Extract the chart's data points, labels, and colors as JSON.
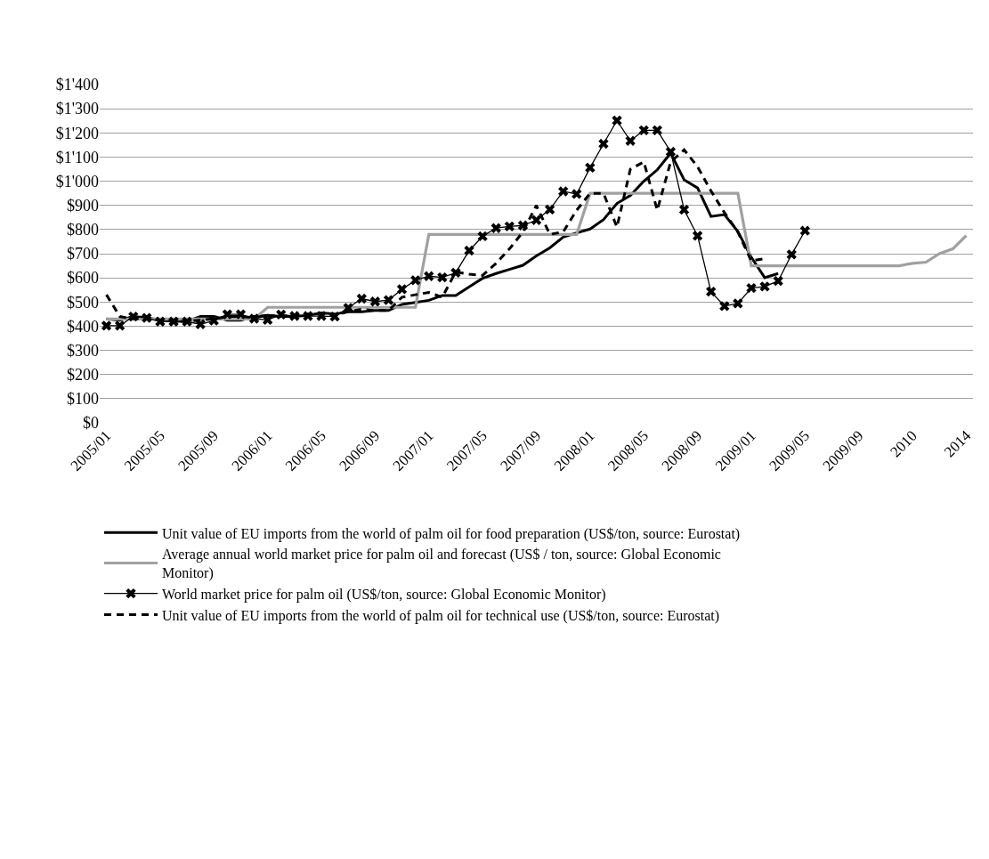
{
  "chart_data": {
    "type": "line",
    "categories": [
      "2005/01",
      null,
      null,
      null,
      "2005/05",
      null,
      null,
      null,
      "2005/09",
      null,
      null,
      null,
      "2006/01",
      null,
      null,
      null,
      "2006/05",
      null,
      null,
      null,
      "2006/09",
      null,
      null,
      null,
      "2007/01",
      null,
      null,
      null,
      "2007/05",
      null,
      null,
      null,
      "2007/09",
      null,
      null,
      null,
      "2008/01",
      null,
      null,
      null,
      "2008/05",
      null,
      null,
      null,
      "2008/09",
      null,
      null,
      null,
      "2009/01",
      null,
      null,
      null,
      "2009/05",
      null,
      null,
      null,
      "2009/09",
      null,
      null,
      null,
      "2010",
      null,
      null,
      null,
      "2014"
    ],
    "series": [
      {
        "name": "Unit value of EU imports from the world of palm oil for food preparation (US$/ton, source: Eurostat)",
        "color": "#000000",
        "line_style": "solid",
        "values": [
          430,
          425,
          440,
          435,
          425,
          420,
          420,
          440,
          440,
          425,
          425,
          440,
          445,
          440,
          440,
          445,
          455,
          450,
          460,
          460,
          465,
          465,
          490,
          498,
          507,
          527,
          527,
          563,
          598,
          618,
          635,
          652,
          691,
          724,
          769,
          786,
          802,
          841,
          908,
          941,
          1000,
          1047,
          1116,
          1006,
          972,
          854,
          862,
          792,
          685,
          601,
          618,
          null,
          null,
          null,
          null,
          null,
          null,
          null,
          null,
          null,
          null,
          null,
          null,
          null,
          null
        ]
      },
      {
        "name": "Average annual world market price for palm oil and forecast (US$ / ton, source: Global Economic Monitor)",
        "color": "#a0a0a0",
        "line_style": "solid",
        "values": [
          430,
          430,
          430,
          430,
          430,
          430,
          430,
          430,
          430,
          430,
          430,
          430,
          478,
          478,
          478,
          478,
          478,
          478,
          478,
          478,
          478,
          478,
          478,
          478,
          780,
          780,
          780,
          780,
          780,
          780,
          780,
          780,
          780,
          780,
          780,
          780,
          950,
          950,
          950,
          950,
          950,
          950,
          950,
          950,
          950,
          950,
          950,
          950,
          650,
          650,
          650,
          650,
          650,
          650,
          650,
          650,
          650,
          650,
          650,
          650,
          660,
          665,
          700,
          720,
          775
        ]
      },
      {
        "name": "World market price for palm oil (US$/ton, source: Global Economic Monitor)",
        "color": "#000000",
        "line_style": "solid",
        "marker": "cross",
        "values": [
          402,
          402,
          440,
          434,
          419,
          419,
          419,
          408,
          423,
          449,
          449,
          431,
          426,
          448,
          442,
          442,
          442,
          440,
          476,
          514,
          502,
          508,
          553,
          590,
          607,
          602,
          621,
          713,
          772,
          806,
          813,
          817,
          839,
          883,
          958,
          947,
          1056,
          1155,
          1251,
          1167,
          1211,
          1211,
          1122,
          882,
          774,
          543,
          483,
          494,
          558,
          564,
          587,
          697,
          795,
          null,
          null,
          null,
          null,
          null,
          null,
          null,
          null,
          null,
          null,
          null,
          null
        ]
      },
      {
        "name": "Unit value of EU imports from the world of palm oil for technical use (US$/ton, source: Eurostat)",
        "color": "#000000",
        "line_style": "dashed",
        "values": [
          530,
          440,
          430,
          435,
          425,
          420,
          420,
          425,
          430,
          440,
          440,
          435,
          445,
          440,
          445,
          450,
          450,
          445,
          460,
          470,
          465,
          465,
          520,
          530,
          540,
          520,
          625,
          615,
          610,
          660,
          720,
          790,
          900,
          780,
          790,
          880,
          950,
          950,
          810,
          1050,
          1080,
          880,
          1080,
          1130,
          1060,
          960,
          870,
          790,
          670,
          680,
          null,
          null,
          null,
          null,
          null,
          null,
          null,
          null,
          null,
          null,
          null,
          null,
          null,
          null,
          null
        ]
      }
    ],
    "ylim": [
      0,
      1400
    ],
    "yticks": [
      {
        "value": 0,
        "label": "$0"
      },
      {
        "value": 100,
        "label": "$100"
      },
      {
        "value": 200,
        "label": "$200"
      },
      {
        "value": 300,
        "label": "$300"
      },
      {
        "value": 400,
        "label": "$400"
      },
      {
        "value": 500,
        "label": "$500"
      },
      {
        "value": 600,
        "label": "$600"
      },
      {
        "value": 700,
        "label": "$700"
      },
      {
        "value": 800,
        "label": "$800"
      },
      {
        "value": 900,
        "label": "$900"
      },
      {
        "value": 1000,
        "label": "$1'000"
      },
      {
        "value": 1100,
        "label": "$1'100"
      },
      {
        "value": 1200,
        "label": "$1'200"
      },
      {
        "value": 1300,
        "label": "$1'300"
      },
      {
        "value": 1400,
        "label": "$1'400"
      }
    ],
    "grid": "y",
    "legend": "bottom"
  }
}
